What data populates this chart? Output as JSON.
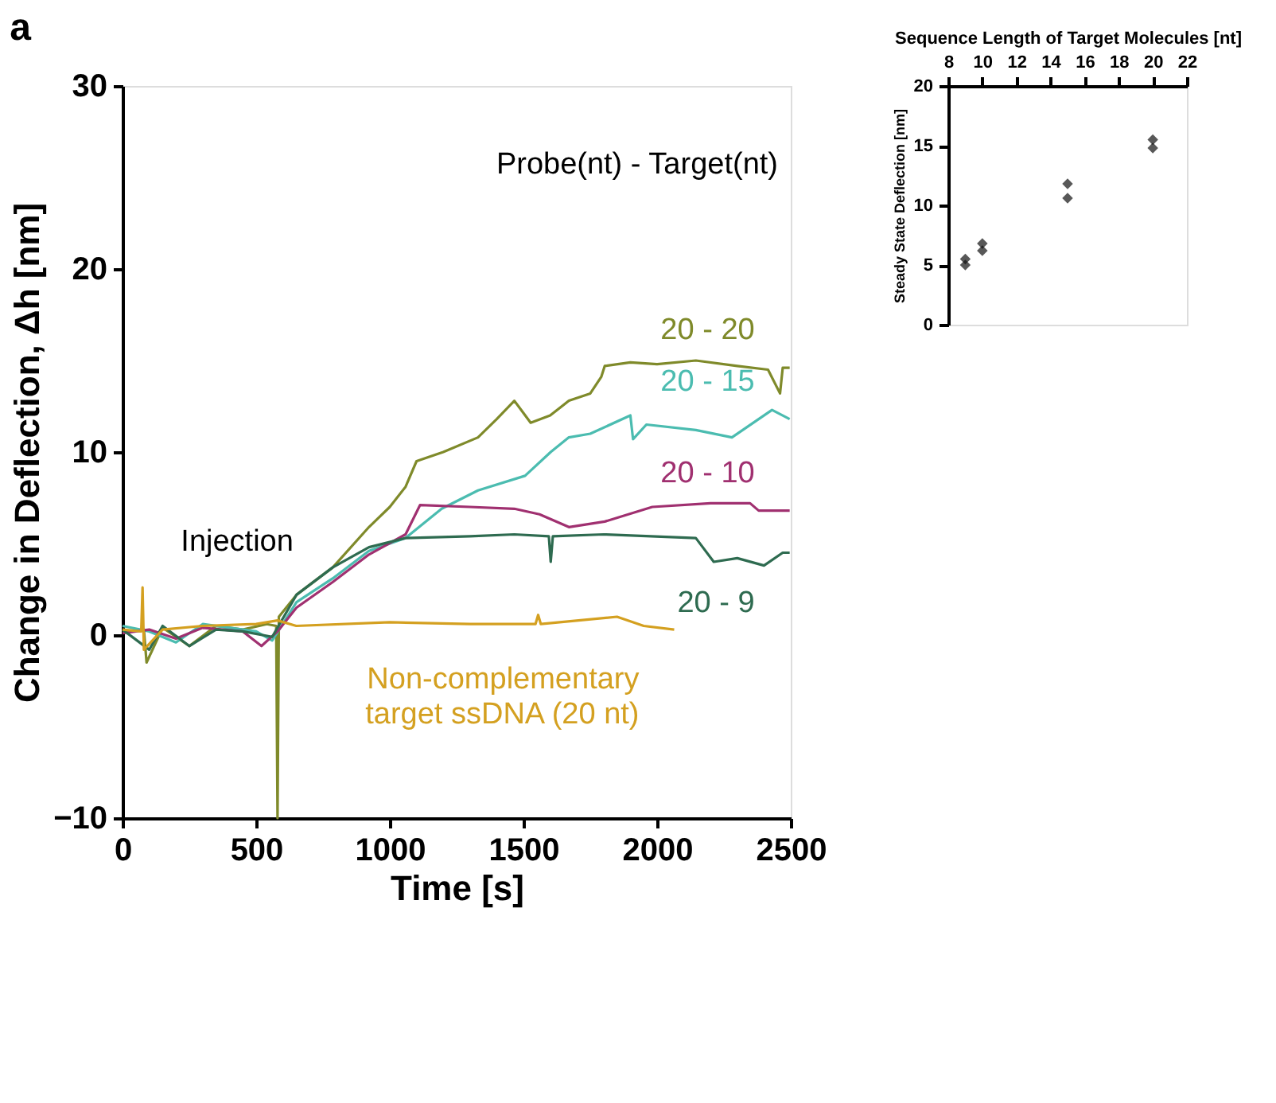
{
  "chart_data": [
    {
      "type": "line",
      "title": "a",
      "xlabel": "Time [s]",
      "ylabel": "Change in Deflection, Δh [nm]",
      "legend_title": "Probe(nt) - Target(nt)",
      "xlim": [
        0,
        2500
      ],
      "ylim": [
        -10,
        30
      ],
      "xticks": [
        0,
        500,
        1000,
        1500,
        2000,
        2500
      ],
      "yticks": [
        -10,
        0,
        10,
        20,
        30
      ],
      "grid": false,
      "legend": false,
      "line_style": "solid",
      "marker": "none",
      "annotations": [
        {
          "text": "Injection",
          "x": 580,
          "y": 0.8
        }
      ],
      "series": [
        {
          "name": "20 - 20",
          "color": "#7f8a2a",
          "x": [
            0,
            80,
            90,
            150,
            250,
            350,
            450,
            540,
            575,
            580,
            585,
            651,
            787,
            922,
            1000,
            1059,
            1100,
            1200,
            1330,
            1400,
            1466,
            1527,
            1600,
            1670,
            1750,
            1791,
            1804,
            1900,
            2000,
            2145,
            2300,
            2415,
            2460,
            2470,
            2496
          ],
          "values": [
            0.2,
            0.3,
            -1.5,
            0.4,
            -0.6,
            0.5,
            0.3,
            0.6,
            0.5,
            -10,
            1.0,
            2.2,
            3.7,
            5.9,
            7.0,
            8.1,
            9.5,
            10.0,
            10.8,
            11.8,
            12.8,
            11.6,
            12.0,
            12.8,
            13.2,
            14.1,
            14.7,
            14.9,
            14.8,
            15.0,
            14.7,
            14.5,
            13.2,
            14.6,
            14.6
          ]
        },
        {
          "name": "20 - 15",
          "color": "#4bbcb0",
          "x": [
            0,
            100,
            200,
            300,
            400,
            500,
            560,
            651,
            787,
            922,
            1059,
            1194,
            1330,
            1506,
            1602,
            1670,
            1750,
            1900,
            1910,
            1960,
            2145,
            2280,
            2430,
            2496
          ],
          "values": [
            0.5,
            0.2,
            -0.4,
            0.6,
            0.4,
            0.2,
            -0.3,
            1.8,
            3.1,
            4.6,
            5.3,
            6.9,
            7.9,
            8.7,
            10.0,
            10.8,
            11.0,
            12.0,
            10.7,
            11.5,
            11.2,
            10.8,
            12.3,
            11.8
          ]
        },
        {
          "name": "20 - 10",
          "color": "#a03070",
          "x": [
            0,
            100,
            200,
            300,
            450,
            520,
            580,
            651,
            787,
            922,
            1059,
            1113,
            1300,
            1466,
            1560,
            1670,
            1804,
            1982,
            2200,
            2348,
            2380,
            2496
          ],
          "values": [
            0.1,
            0.3,
            -0.2,
            0.4,
            0.2,
            -0.6,
            0.2,
            1.5,
            2.9,
            4.4,
            5.5,
            7.1,
            7.0,
            6.9,
            6.6,
            5.9,
            6.2,
            7.0,
            7.2,
            7.2,
            6.8,
            6.8
          ]
        },
        {
          "name": "20 - 9",
          "color": "#2e6b50",
          "x": [
            0,
            100,
            150,
            250,
            350,
            450,
            560,
            651,
            787,
            922,
            1059,
            1300,
            1466,
            1595,
            1602,
            1610,
            1800,
            2145,
            2212,
            2300,
            2400,
            2470,
            2496
          ],
          "values": [
            0.3,
            -0.8,
            0.5,
            -0.6,
            0.3,
            0.2,
            -0.1,
            2.2,
            3.7,
            4.8,
            5.3,
            5.4,
            5.5,
            5.4,
            4.0,
            5.4,
            5.5,
            5.3,
            4.0,
            4.2,
            3.8,
            4.5,
            4.5
          ]
        },
        {
          "name": "Non-complementary\ntarget ssDNA (20 nt)",
          "color": "#d4a020",
          "x": [
            0,
            70,
            75,
            80,
            150,
            300,
            500,
            580,
            650,
            1000,
            1300,
            1545,
            1555,
            1565,
            1850,
            1950,
            2064
          ],
          "values": [
            0.3,
            0.2,
            2.6,
            -0.8,
            0.3,
            0.5,
            0.6,
            0.8,
            0.5,
            0.7,
            0.6,
            0.6,
            1.1,
            0.6,
            1.0,
            0.5,
            0.3
          ]
        }
      ]
    },
    {
      "type": "scatter",
      "xlabel": "Sequence Length of Target Molecules [nt]",
      "ylabel": "Steady State Deflection [nm]",
      "xlim": [
        8,
        22
      ],
      "ylim": [
        0,
        20
      ],
      "xticks": [
        8,
        10,
        12,
        14,
        16,
        18,
        20,
        22
      ],
      "yticks": [
        0,
        5,
        10,
        15,
        20
      ],
      "grid": false,
      "marker": "diamond",
      "series": [
        {
          "color": "#111111",
          "x": [
            9,
            9,
            10,
            10,
            15,
            15,
            20,
            20
          ],
          "values": [
            5.5,
            5.0,
            6.8,
            6.2,
            11.8,
            10.6,
            15.5,
            14.8
          ]
        }
      ]
    }
  ]
}
